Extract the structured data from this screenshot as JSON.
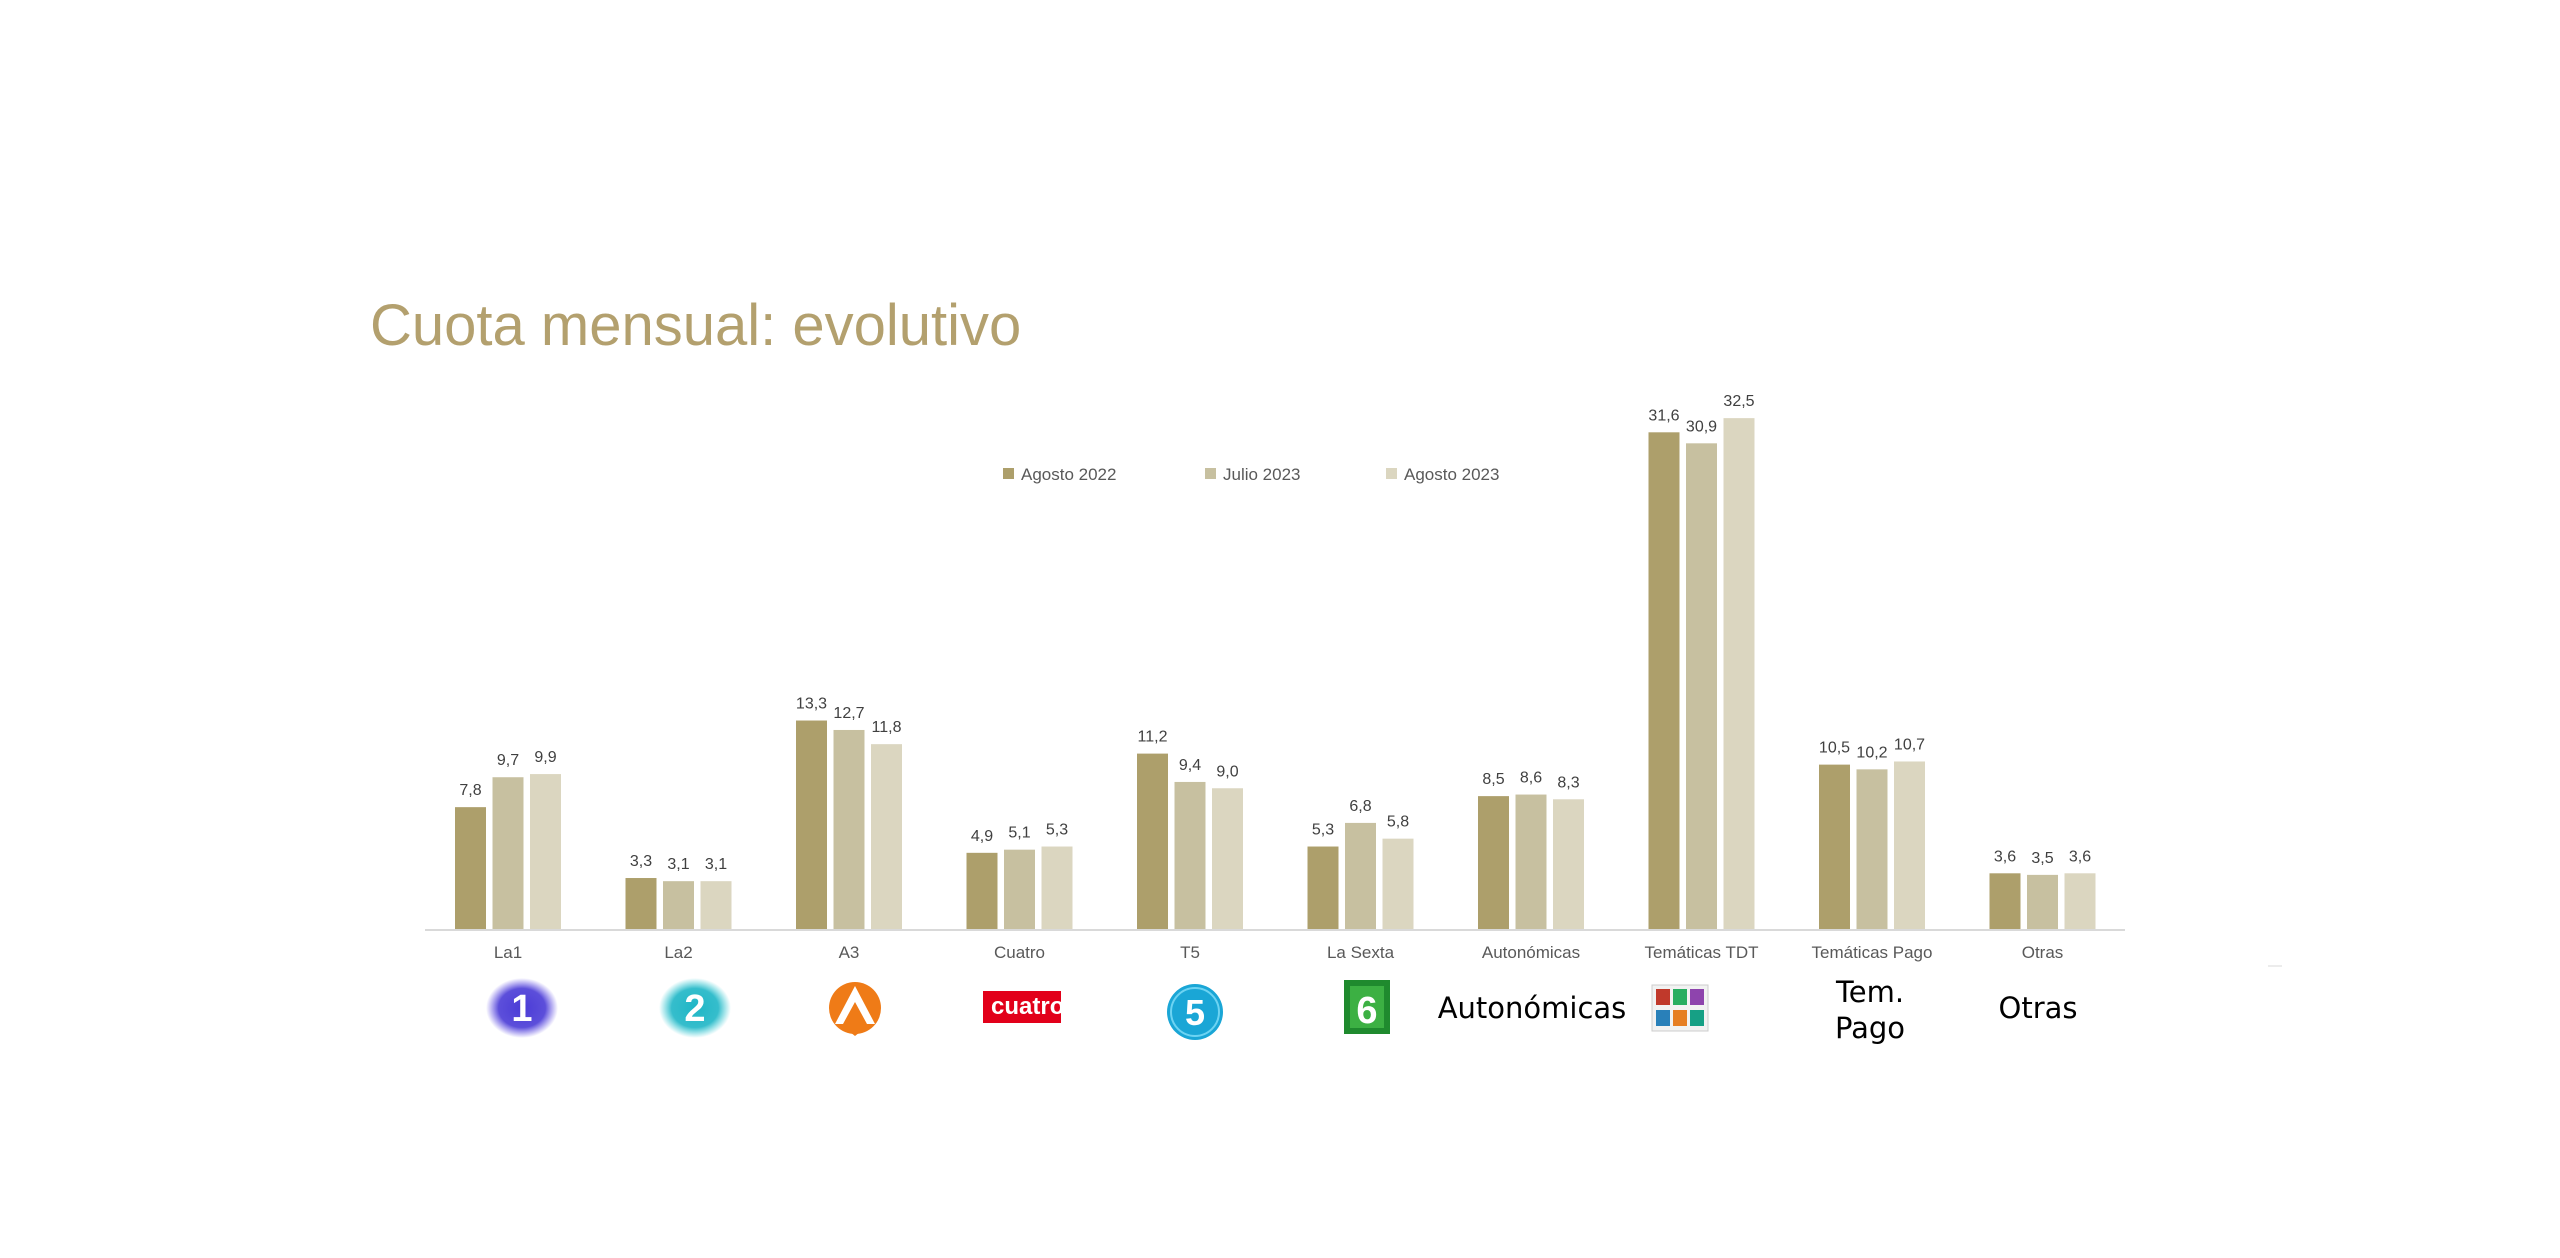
{
  "title": "Cuota mensual: evolutivo",
  "chart_data": {
    "type": "bar",
    "categories": [
      "La1",
      "La2",
      "A3",
      "Cuatro",
      "T5",
      "La Sexta",
      "Autonómicas",
      "Temáticas TDT",
      "Temáticas Pago",
      "Otras"
    ],
    "series": [
      {
        "name": "Agosto 2022",
        "color": "#ad9f6b",
        "values": [
          7.8,
          3.3,
          13.3,
          4.9,
          11.2,
          5.3,
          8.5,
          31.6,
          10.5,
          3.6
        ],
        "labels": [
          "7,8",
          "3,3",
          "13,3",
          "4,9",
          "11,2",
          "5,3",
          "8,5",
          "31,6",
          "10,5",
          "3,6"
        ]
      },
      {
        "name": "Julio 2023",
        "color": "#c7c0a0",
        "values": [
          9.7,
          3.1,
          12.7,
          5.1,
          9.4,
          6.8,
          8.6,
          30.9,
          10.2,
          3.5
        ],
        "labels": [
          "9,7",
          "3,1",
          "12,7",
          "5,1",
          "9,4",
          "6,8",
          "8,6",
          "30,9",
          "10,2",
          "3,5"
        ]
      },
      {
        "name": "Agosto 2023",
        "color": "#dbd6c0",
        "values": [
          9.9,
          3.1,
          11.8,
          5.3,
          9.0,
          5.8,
          8.3,
          32.5,
          10.7,
          3.6
        ],
        "labels": [
          "9,9",
          "3,1",
          "11,8",
          "5,3",
          "9,0",
          "5,8",
          "8,3",
          "32,5",
          "10,7",
          "3,6"
        ]
      }
    ],
    "legend_position": "top-center",
    "grid": false,
    "ylim": [
      0,
      33
    ]
  },
  "logos": [
    {
      "category": "La1",
      "icon": "la1-logo-icon",
      "text": "1"
    },
    {
      "category": "La2",
      "icon": "la2-logo-icon",
      "text": "2"
    },
    {
      "category": "A3",
      "icon": "antena3-logo-icon",
      "text": ""
    },
    {
      "category": "Cuatro",
      "icon": "cuatro-logo-icon",
      "text": "cuatro"
    },
    {
      "category": "T5",
      "icon": "telecinco-logo-icon",
      "text": "5"
    },
    {
      "category": "La Sexta",
      "icon": "lasexta-logo-icon",
      "text": "6"
    },
    {
      "category": "Autonómicas",
      "icon": "",
      "text": "Autonómicas"
    },
    {
      "category": "Temáticas TDT",
      "icon": "tematicas-tdt-logo-icon",
      "text": ""
    },
    {
      "category": "Temáticas Pago",
      "icon": "",
      "text": "Tem. Pago"
    },
    {
      "category": "Otras",
      "icon": "",
      "text": "Otras"
    }
  ]
}
